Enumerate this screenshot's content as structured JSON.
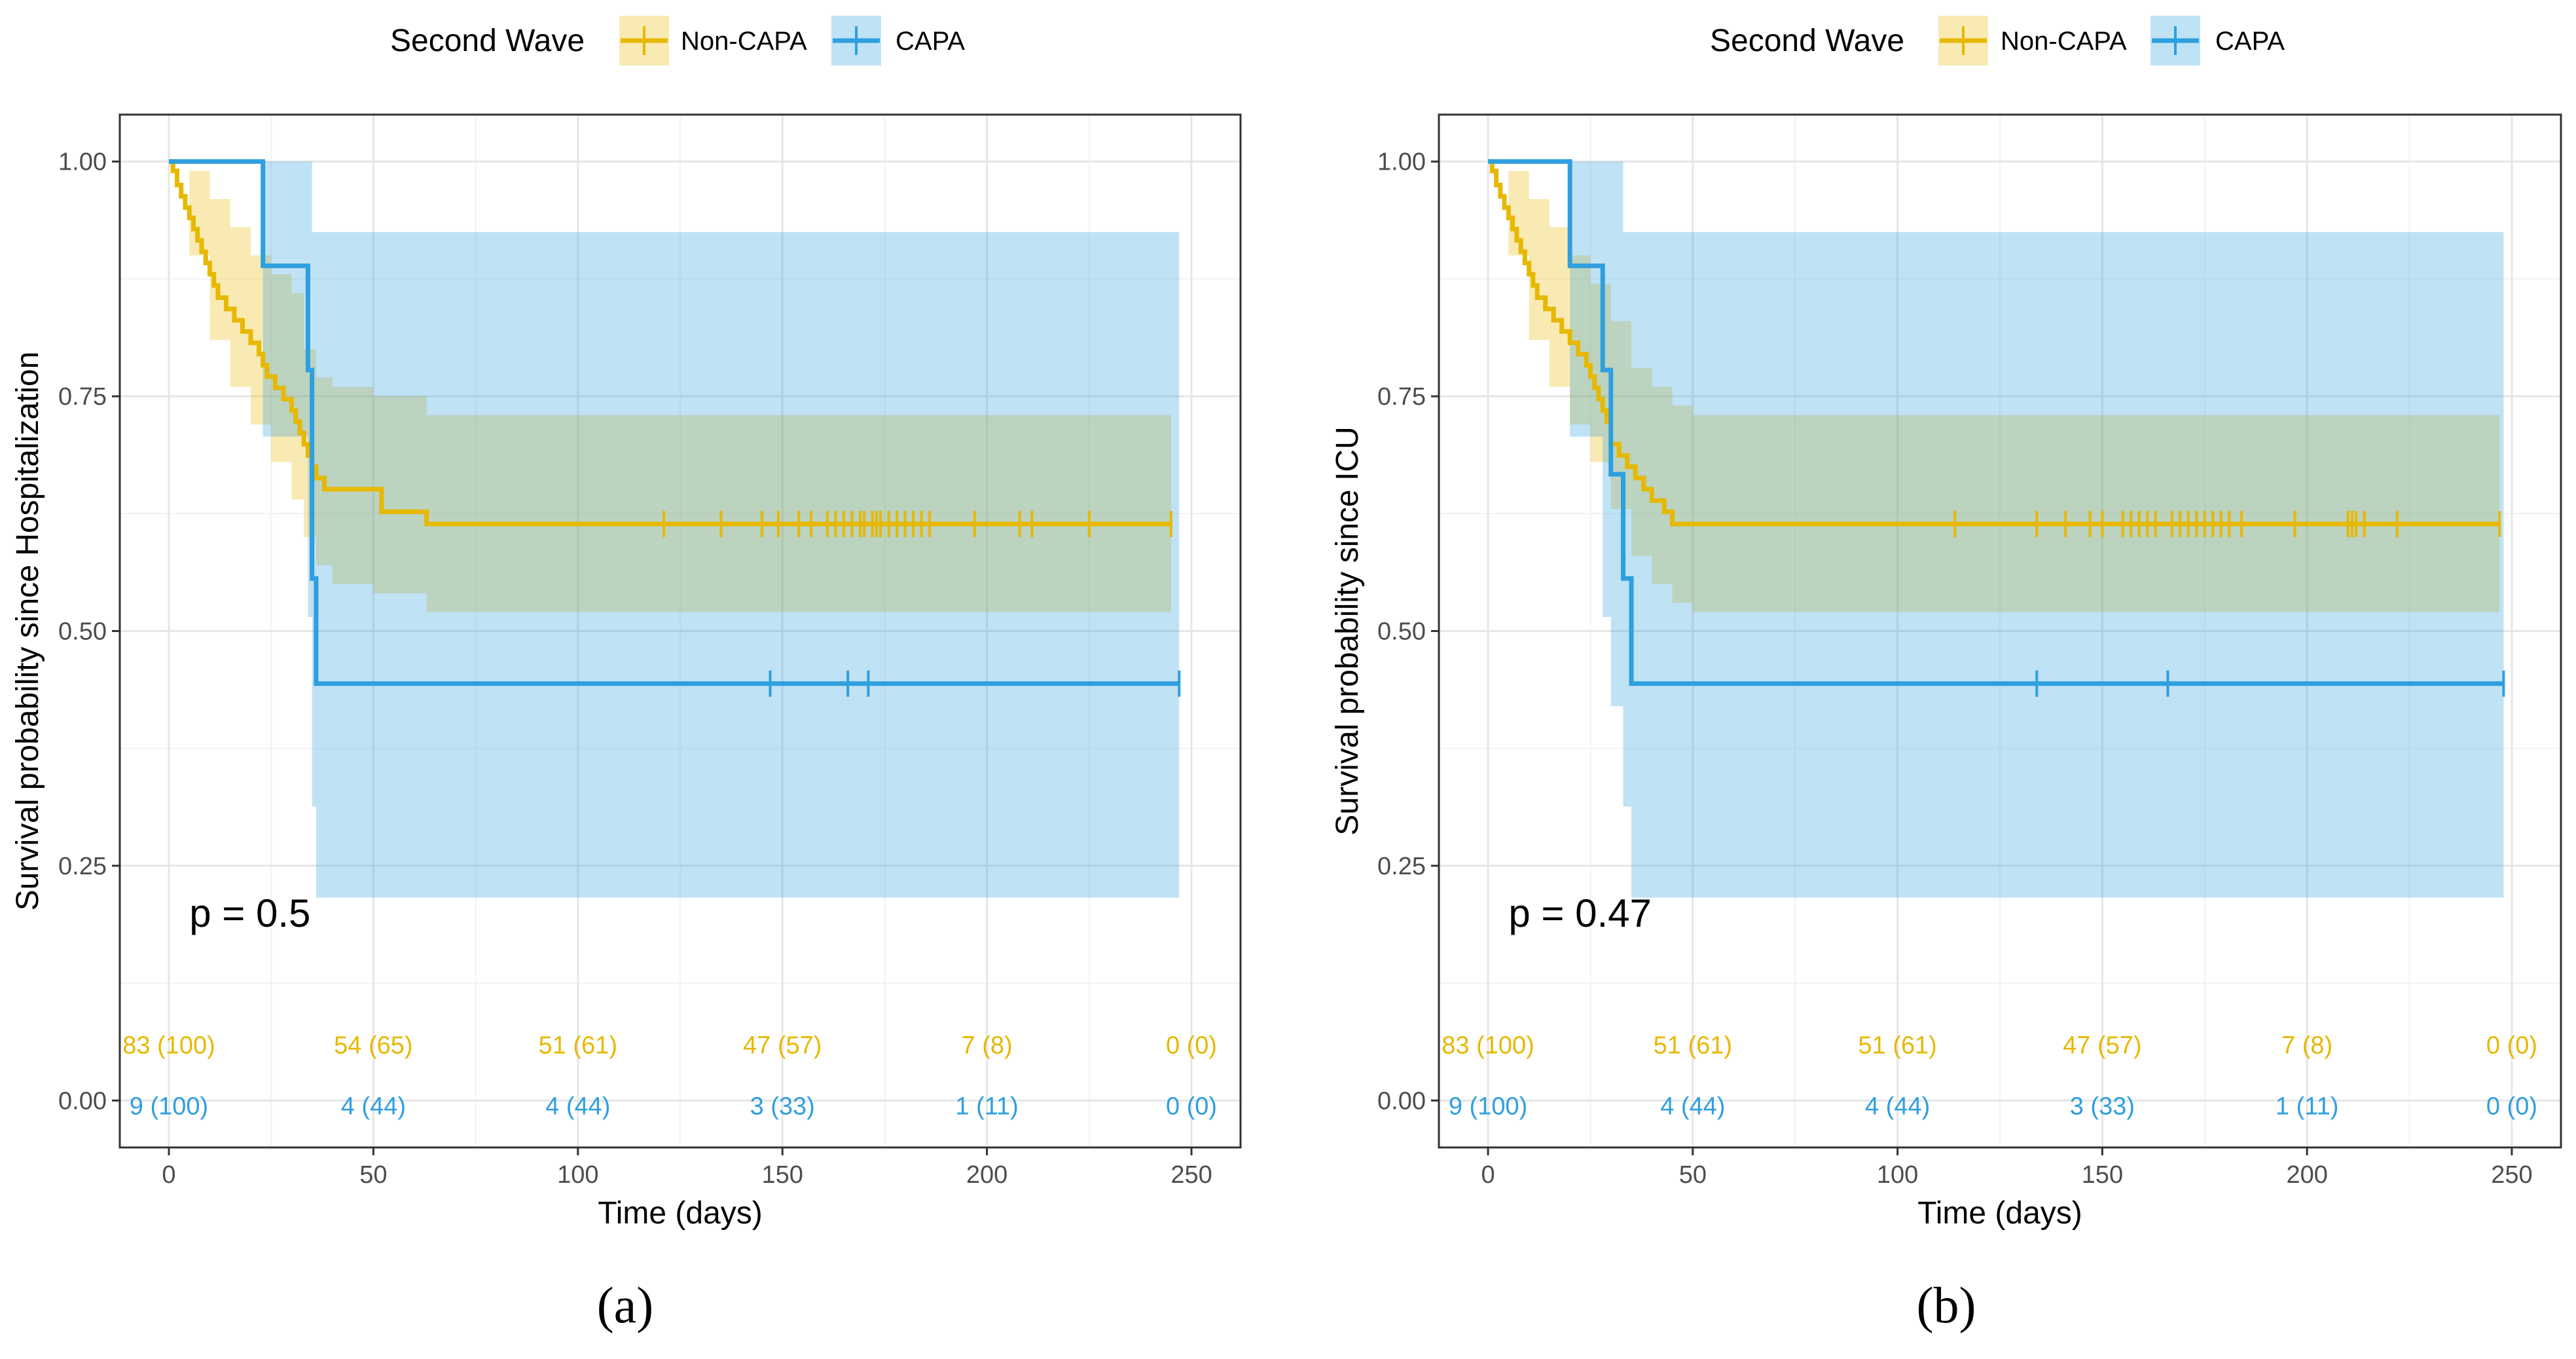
{
  "chart_data": [
    {
      "type": "line",
      "subtype": "kaplan-meier",
      "panel_label": "(a)",
      "xlabel": "Time (days)",
      "ylabel": "Survival probability since Hospitalization",
      "xlim": [
        -12,
        262
      ],
      "ylim": [
        -0.05,
        1.05
      ],
      "x_ticks": [
        0,
        50,
        100,
        150,
        200,
        250
      ],
      "y_ticks": [
        0.0,
        0.25,
        0.5,
        0.75,
        1.0
      ],
      "y_tick_labels": [
        "0.00",
        "0.25",
        "0.50",
        "0.75",
        "1.00"
      ],
      "grid": true,
      "legend": {
        "title": "Second Wave",
        "position": "top",
        "entries": [
          "Non-CAPA",
          "CAPA"
        ]
      },
      "p_value_text": "p = 0.5",
      "series": [
        {
          "name": "Non-CAPA",
          "color": "#E7B800",
          "step_x": [
            0,
            1,
            2,
            3,
            4,
            5,
            6,
            7,
            8,
            9,
            10,
            11,
            12,
            14,
            16,
            18,
            20,
            22,
            23,
            24,
            26,
            28,
            30,
            31,
            32,
            33,
            34,
            35,
            36,
            38,
            40,
            45,
            50,
            52,
            63,
            245
          ],
          "step_y": [
            1.0,
            0.99,
            0.975,
            0.963,
            0.951,
            0.94,
            0.928,
            0.916,
            0.904,
            0.892,
            0.88,
            0.868,
            0.855,
            0.843,
            0.831,
            0.819,
            0.807,
            0.795,
            0.783,
            0.771,
            0.759,
            0.747,
            0.735,
            0.723,
            0.711,
            0.699,
            0.687,
            0.675,
            0.663,
            0.651,
            0.651,
            0.651,
            0.651,
            0.627,
            0.614,
            0.614
          ],
          "ci_x": [
            0,
            5,
            10,
            15,
            20,
            25,
            30,
            33,
            36,
            40,
            50,
            63,
            245
          ],
          "ci_lower": [
            1.0,
            0.9,
            0.81,
            0.76,
            0.72,
            0.68,
            0.64,
            0.6,
            0.57,
            0.55,
            0.54,
            0.52,
            0.52
          ],
          "ci_upper": [
            1.0,
            0.99,
            0.96,
            0.93,
            0.9,
            0.88,
            0.86,
            0.8,
            0.77,
            0.76,
            0.75,
            0.73,
            0.73
          ],
          "censor_x": [
            121,
            135,
            145,
            149,
            154,
            157,
            161,
            163,
            165,
            167,
            169,
            170,
            172,
            173,
            174,
            176,
            178,
            180,
            182,
            184,
            186,
            197,
            208,
            211,
            225,
            245
          ]
        },
        {
          "name": "CAPA",
          "color": "#2E9FDF",
          "step_x": [
            0,
            23,
            34,
            35,
            36,
            247
          ],
          "step_y": [
            1.0,
            0.889,
            0.778,
            0.556,
            0.444,
            0.444
          ],
          "ci_x": [
            0,
            23,
            34,
            35,
            36,
            247
          ],
          "ci_lower": [
            1.0,
            0.707,
            0.515,
            0.313,
            0.216,
            0.216
          ],
          "ci_upper": [
            1.0,
            1.0,
            1.0,
            0.925,
            0.925,
            0.925
          ],
          "censor_x": [
            147,
            166,
            171,
            247
          ]
        }
      ],
      "risk_table": {
        "times": [
          0,
          50,
          100,
          150,
          200,
          250
        ],
        "rows": [
          {
            "name": "Non-CAPA",
            "color": "#E7B800",
            "labels": [
              "83 (100)",
              "54 (65)",
              "51 (61)",
              "47 (57)",
              "7 (8)",
              "0 (0)"
            ],
            "y": 0.06
          },
          {
            "name": "CAPA",
            "color": "#2E9FDF",
            "labels": [
              "9 (100)",
              "4 (44)",
              "4 (44)",
              "3 (33)",
              "1 (11)",
              "0 (0)"
            ],
            "y": -0.005
          }
        ]
      }
    },
    {
      "type": "line",
      "subtype": "kaplan-meier",
      "panel_label": "(b)",
      "xlabel": "Time (days)",
      "ylabel": "Survival probability since ICU",
      "xlim": [
        -12,
        262
      ],
      "ylim": [
        -0.05,
        1.05
      ],
      "x_ticks": [
        0,
        50,
        100,
        150,
        200,
        250
      ],
      "y_ticks": [
        0.0,
        0.25,
        0.5,
        0.75,
        1.0
      ],
      "y_tick_labels": [
        "0.00",
        "0.25",
        "0.50",
        "0.75",
        "1.00"
      ],
      "grid": true,
      "legend": {
        "title": "Second Wave",
        "position": "top",
        "entries": [
          "Non-CAPA",
          "CAPA"
        ]
      },
      "p_value_text": "p = 0.47",
      "series": [
        {
          "name": "Non-CAPA",
          "color": "#E7B800",
          "step_x": [
            0,
            1,
            2,
            3,
            4,
            5,
            6,
            7,
            8,
            9,
            10,
            11,
            12,
            14,
            16,
            18,
            20,
            22,
            24,
            25,
            26,
            27,
            28,
            29,
            30,
            32,
            34,
            36,
            38,
            40,
            43,
            45,
            50,
            247
          ],
          "step_y": [
            1.0,
            0.99,
            0.975,
            0.963,
            0.951,
            0.94,
            0.928,
            0.916,
            0.904,
            0.892,
            0.88,
            0.868,
            0.855,
            0.843,
            0.831,
            0.819,
            0.807,
            0.795,
            0.783,
            0.771,
            0.759,
            0.747,
            0.735,
            0.723,
            0.699,
            0.687,
            0.675,
            0.663,
            0.651,
            0.639,
            0.627,
            0.614,
            0.614,
            0.614
          ],
          "ci_x": [
            0,
            5,
            10,
            15,
            20,
            25,
            30,
            35,
            40,
            45,
            50,
            247
          ],
          "ci_lower": [
            1.0,
            0.9,
            0.81,
            0.76,
            0.72,
            0.68,
            0.63,
            0.58,
            0.55,
            0.53,
            0.52,
            0.52
          ],
          "ci_upper": [
            1.0,
            0.99,
            0.96,
            0.93,
            0.9,
            0.87,
            0.83,
            0.78,
            0.76,
            0.74,
            0.73,
            0.73
          ],
          "censor_x": [
            114,
            134,
            141,
            147,
            150,
            155,
            157,
            159,
            161,
            163,
            167,
            169,
            171,
            173,
            175,
            177,
            179,
            181,
            184,
            197,
            210,
            211,
            212,
            214,
            222,
            247
          ]
        },
        {
          "name": "CAPA",
          "color": "#2E9FDF",
          "step_x": [
            0,
            20,
            28,
            30,
            33,
            35,
            248
          ],
          "step_y": [
            1.0,
            0.889,
            0.778,
            0.667,
            0.556,
            0.444,
            0.444
          ],
          "ci_x": [
            0,
            20,
            28,
            30,
            33,
            35,
            248
          ],
          "ci_lower": [
            1.0,
            0.707,
            0.515,
            0.42,
            0.313,
            0.216,
            0.216
          ],
          "ci_upper": [
            1.0,
            1.0,
            1.0,
            1.0,
            0.925,
            0.925,
            0.925
          ],
          "censor_x": [
            134,
            166,
            248
          ]
        }
      ],
      "risk_table": {
        "times": [
          0,
          50,
          100,
          150,
          200,
          250
        ],
        "rows": [
          {
            "name": "Non-CAPA",
            "color": "#E7B800",
            "labels": [
              "83 (100)",
              "51 (61)",
              "51 (61)",
              "47 (57)",
              "7 (8)",
              "0 (0)"
            ],
            "y": 0.06
          },
          {
            "name": "CAPA",
            "color": "#2E9FDF",
            "labels": [
              "9 (100)",
              "4 (44)",
              "4 (44)",
              "3 (33)",
              "1 (11)",
              "0 (0)"
            ],
            "y": -0.005
          }
        ]
      }
    }
  ]
}
